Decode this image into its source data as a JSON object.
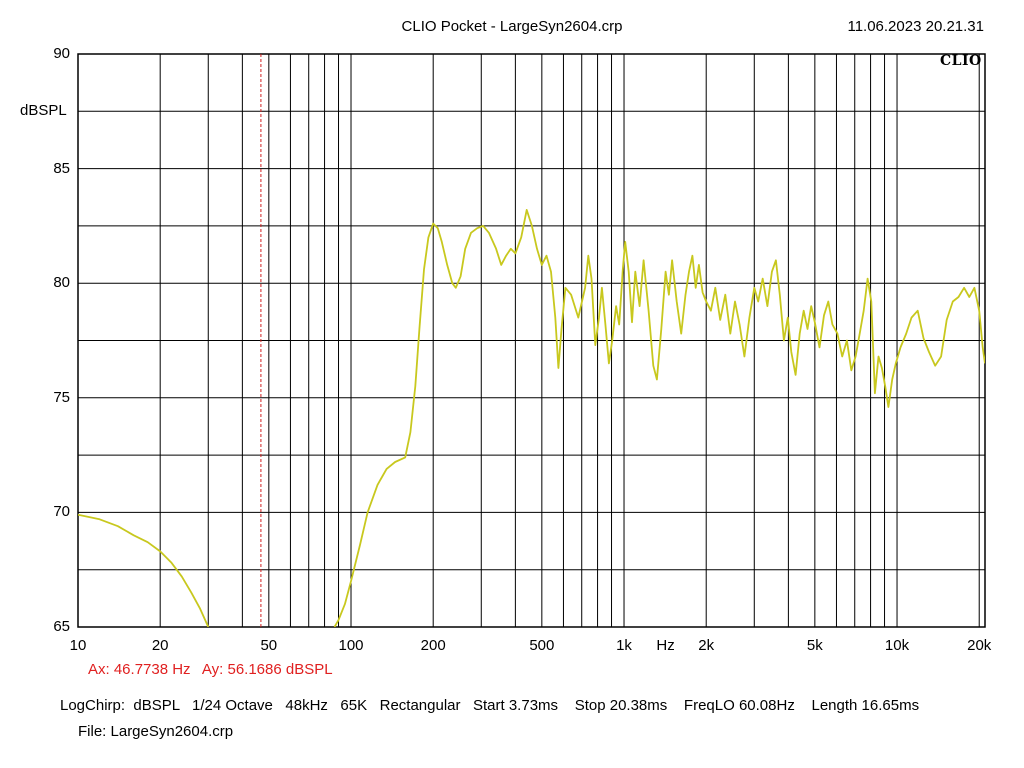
{
  "header": {
    "title": "CLIO Pocket - LargeSyn2604.crp",
    "datetime": "11.06.2023 20.21.31",
    "brand": "CLIO"
  },
  "chart_data": {
    "type": "line",
    "title": "CLIO Pocket - LargeSyn2604.crp",
    "xlabel": "Hz",
    "ylabel": "dBSPL",
    "xscale": "log",
    "xlim": [
      10,
      21000
    ],
    "ylim": [
      65,
      90
    ],
    "grid": true,
    "x_tick_labels": [
      {
        "value": 10,
        "label": "10"
      },
      {
        "value": 20,
        "label": "20"
      },
      {
        "value": 50,
        "label": "50"
      },
      {
        "value": 100,
        "label": "100"
      },
      {
        "value": 200,
        "label": "200"
      },
      {
        "value": 500,
        "label": "500"
      },
      {
        "value": 1000,
        "label": "1k"
      },
      {
        "value": 2000,
        "label": "2k"
      },
      {
        "value": 5000,
        "label": "5k"
      },
      {
        "value": 10000,
        "label": "10k"
      },
      {
        "value": 20000,
        "label": "20k"
      }
    ],
    "y_ticks": [
      65,
      70,
      75,
      80,
      85,
      90
    ],
    "line_color": "#c8c81e",
    "cursor": {
      "x": 46.7738,
      "color": "#d02020"
    },
    "series": [
      {
        "points": [
          [
            10,
            69.9
          ],
          [
            12,
            69.7
          ],
          [
            14,
            69.4
          ],
          [
            16,
            69.0
          ],
          [
            18,
            68.7
          ],
          [
            20,
            68.3
          ],
          [
            22,
            67.8
          ],
          [
            24,
            67.2
          ],
          [
            26,
            66.5
          ],
          [
            28,
            65.8
          ],
          [
            30,
            65.0
          ],
          [
            87,
            65.0
          ],
          [
            90,
            65.3
          ],
          [
            95,
            66.0
          ],
          [
            100,
            67.0
          ],
          [
            108,
            68.6
          ],
          [
            115,
            70.0
          ],
          [
            125,
            71.2
          ],
          [
            135,
            71.9
          ],
          [
            145,
            72.2
          ],
          [
            158,
            72.4
          ],
          [
            165,
            73.5
          ],
          [
            172,
            75.5
          ],
          [
            178,
            78.0
          ],
          [
            185,
            80.6
          ],
          [
            192,
            82.0
          ],
          [
            200,
            82.6
          ],
          [
            208,
            82.4
          ],
          [
            215,
            81.8
          ],
          [
            225,
            80.8
          ],
          [
            235,
            80.0
          ],
          [
            242,
            79.8
          ],
          [
            252,
            80.3
          ],
          [
            262,
            81.5
          ],
          [
            275,
            82.2
          ],
          [
            290,
            82.4
          ],
          [
            305,
            82.5
          ],
          [
            320,
            82.2
          ],
          [
            340,
            81.5
          ],
          [
            355,
            80.8
          ],
          [
            370,
            81.2
          ],
          [
            385,
            81.5
          ],
          [
            400,
            81.3
          ],
          [
            420,
            82.0
          ],
          [
            440,
            83.2
          ],
          [
            460,
            82.5
          ],
          [
            480,
            81.5
          ],
          [
            500,
            80.8
          ],
          [
            520,
            81.2
          ],
          [
            540,
            80.5
          ],
          [
            560,
            78.5
          ],
          [
            575,
            76.3
          ],
          [
            590,
            78.0
          ],
          [
            610,
            79.8
          ],
          [
            640,
            79.5
          ],
          [
            680,
            78.5
          ],
          [
            720,
            79.8
          ],
          [
            740,
            81.2
          ],
          [
            760,
            80.2
          ],
          [
            785,
            77.3
          ],
          [
            810,
            78.5
          ],
          [
            830,
            79.8
          ],
          [
            855,
            78.2
          ],
          [
            880,
            76.5
          ],
          [
            905,
            77.5
          ],
          [
            935,
            79.0
          ],
          [
            960,
            78.2
          ],
          [
            990,
            80.6
          ],
          [
            1010,
            81.8
          ],
          [
            1040,
            80.5
          ],
          [
            1070,
            78.3
          ],
          [
            1100,
            80.5
          ],
          [
            1140,
            79.0
          ],
          [
            1180,
            81.0
          ],
          [
            1230,
            78.8
          ],
          [
            1280,
            76.4
          ],
          [
            1320,
            75.8
          ],
          [
            1370,
            78.0
          ],
          [
            1420,
            80.5
          ],
          [
            1460,
            79.5
          ],
          [
            1500,
            81.0
          ],
          [
            1560,
            79.2
          ],
          [
            1620,
            77.8
          ],
          [
            1680,
            79.5
          ],
          [
            1730,
            80.5
          ],
          [
            1780,
            81.2
          ],
          [
            1830,
            79.8
          ],
          [
            1880,
            80.8
          ],
          [
            1940,
            79.6
          ],
          [
            2000,
            79.2
          ],
          [
            2080,
            78.8
          ],
          [
            2160,
            79.8
          ],
          [
            2250,
            78.4
          ],
          [
            2350,
            79.5
          ],
          [
            2450,
            77.8
          ],
          [
            2550,
            79.2
          ],
          [
            2650,
            78.2
          ],
          [
            2760,
            76.8
          ],
          [
            2880,
            78.5
          ],
          [
            3000,
            79.8
          ],
          [
            3100,
            79.2
          ],
          [
            3220,
            80.2
          ],
          [
            3350,
            79.0
          ],
          [
            3480,
            80.5
          ],
          [
            3600,
            81.0
          ],
          [
            3720,
            79.5
          ],
          [
            3850,
            77.5
          ],
          [
            3980,
            78.5
          ],
          [
            4100,
            77.0
          ],
          [
            4250,
            76.0
          ],
          [
            4400,
            77.8
          ],
          [
            4550,
            78.8
          ],
          [
            4700,
            78.0
          ],
          [
            4850,
            79.0
          ],
          [
            5000,
            78.3
          ],
          [
            5200,
            77.2
          ],
          [
            5400,
            78.6
          ],
          [
            5600,
            79.2
          ],
          [
            5800,
            78.2
          ],
          [
            6050,
            77.8
          ],
          [
            6300,
            76.8
          ],
          [
            6550,
            77.5
          ],
          [
            6800,
            76.2
          ],
          [
            7050,
            76.8
          ],
          [
            7300,
            77.8
          ],
          [
            7550,
            78.8
          ],
          [
            7800,
            80.2
          ],
          [
            8050,
            79.2
          ],
          [
            8300,
            75.2
          ],
          [
            8550,
            76.8
          ],
          [
            8800,
            76.3
          ],
          [
            9050,
            75.5
          ],
          [
            9300,
            74.6
          ],
          [
            9600,
            75.8
          ],
          [
            9900,
            76.5
          ],
          [
            10300,
            77.2
          ],
          [
            10800,
            77.8
          ],
          [
            11300,
            78.5
          ],
          [
            11900,
            78.8
          ],
          [
            12500,
            77.6
          ],
          [
            13100,
            77.0
          ],
          [
            13800,
            76.4
          ],
          [
            14500,
            76.8
          ],
          [
            15200,
            78.4
          ],
          [
            16000,
            79.2
          ],
          [
            16800,
            79.4
          ],
          [
            17600,
            79.8
          ],
          [
            18400,
            79.4
          ],
          [
            19200,
            79.8
          ],
          [
            20000,
            78.8
          ],
          [
            20600,
            77.2
          ],
          [
            21000,
            76.5
          ]
        ]
      }
    ]
  },
  "cursor_readout": {
    "ax": "Ax: 46.7738 Hz",
    "ay": "Ay: 56.1686 dBSPL"
  },
  "footer": {
    "params": "LogChirp:  dBSPL   1/24 Octave   48kHz   65K   Rectangular   Start 3.73ms    Stop 20.38ms    FreqLO 60.08Hz    Length 16.65ms",
    "file": "File: LargeSyn2604.crp"
  }
}
